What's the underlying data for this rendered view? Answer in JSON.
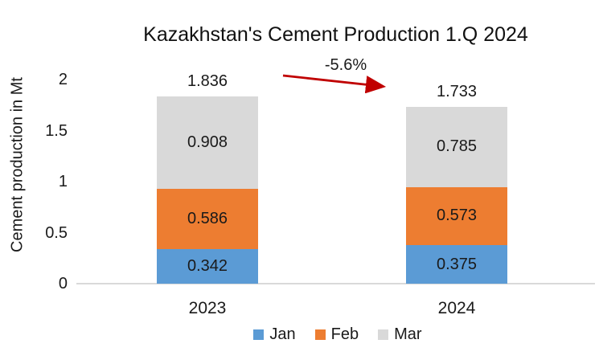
{
  "chart_data": {
    "type": "bar",
    "stacked": true,
    "title": "Kazakhstan's Cement Production 1.Q 2024",
    "ylabel": "Cement production in Mt",
    "xlabel": "",
    "categories": [
      "2023",
      "2024"
    ],
    "series": [
      {
        "name": "Jan",
        "color": "#5B9BD5",
        "values": [
          0.342,
          0.375
        ]
      },
      {
        "name": "Feb",
        "color": "#ED7D31",
        "values": [
          0.586,
          0.573
        ]
      },
      {
        "name": "Mar",
        "color": "#D9D9D9",
        "values": [
          0.908,
          0.785
        ]
      }
    ],
    "totals": [
      1.836,
      1.733
    ],
    "value_decimals": 3,
    "yticks": [
      "0",
      "0.5",
      "1",
      "1.5",
      "2"
    ],
    "ylim": [
      0,
      2
    ],
    "grid": false,
    "legend_position": "bottom",
    "legend_entries": [
      "Jan",
      "Feb",
      "Mar"
    ],
    "annotation": {
      "text": "-5.6%",
      "arrow_color": "#C00000"
    }
  },
  "colors": {
    "background": "#FFFFFF",
    "axis_line": "#D9D9D9",
    "text": "#1A1A1A"
  }
}
